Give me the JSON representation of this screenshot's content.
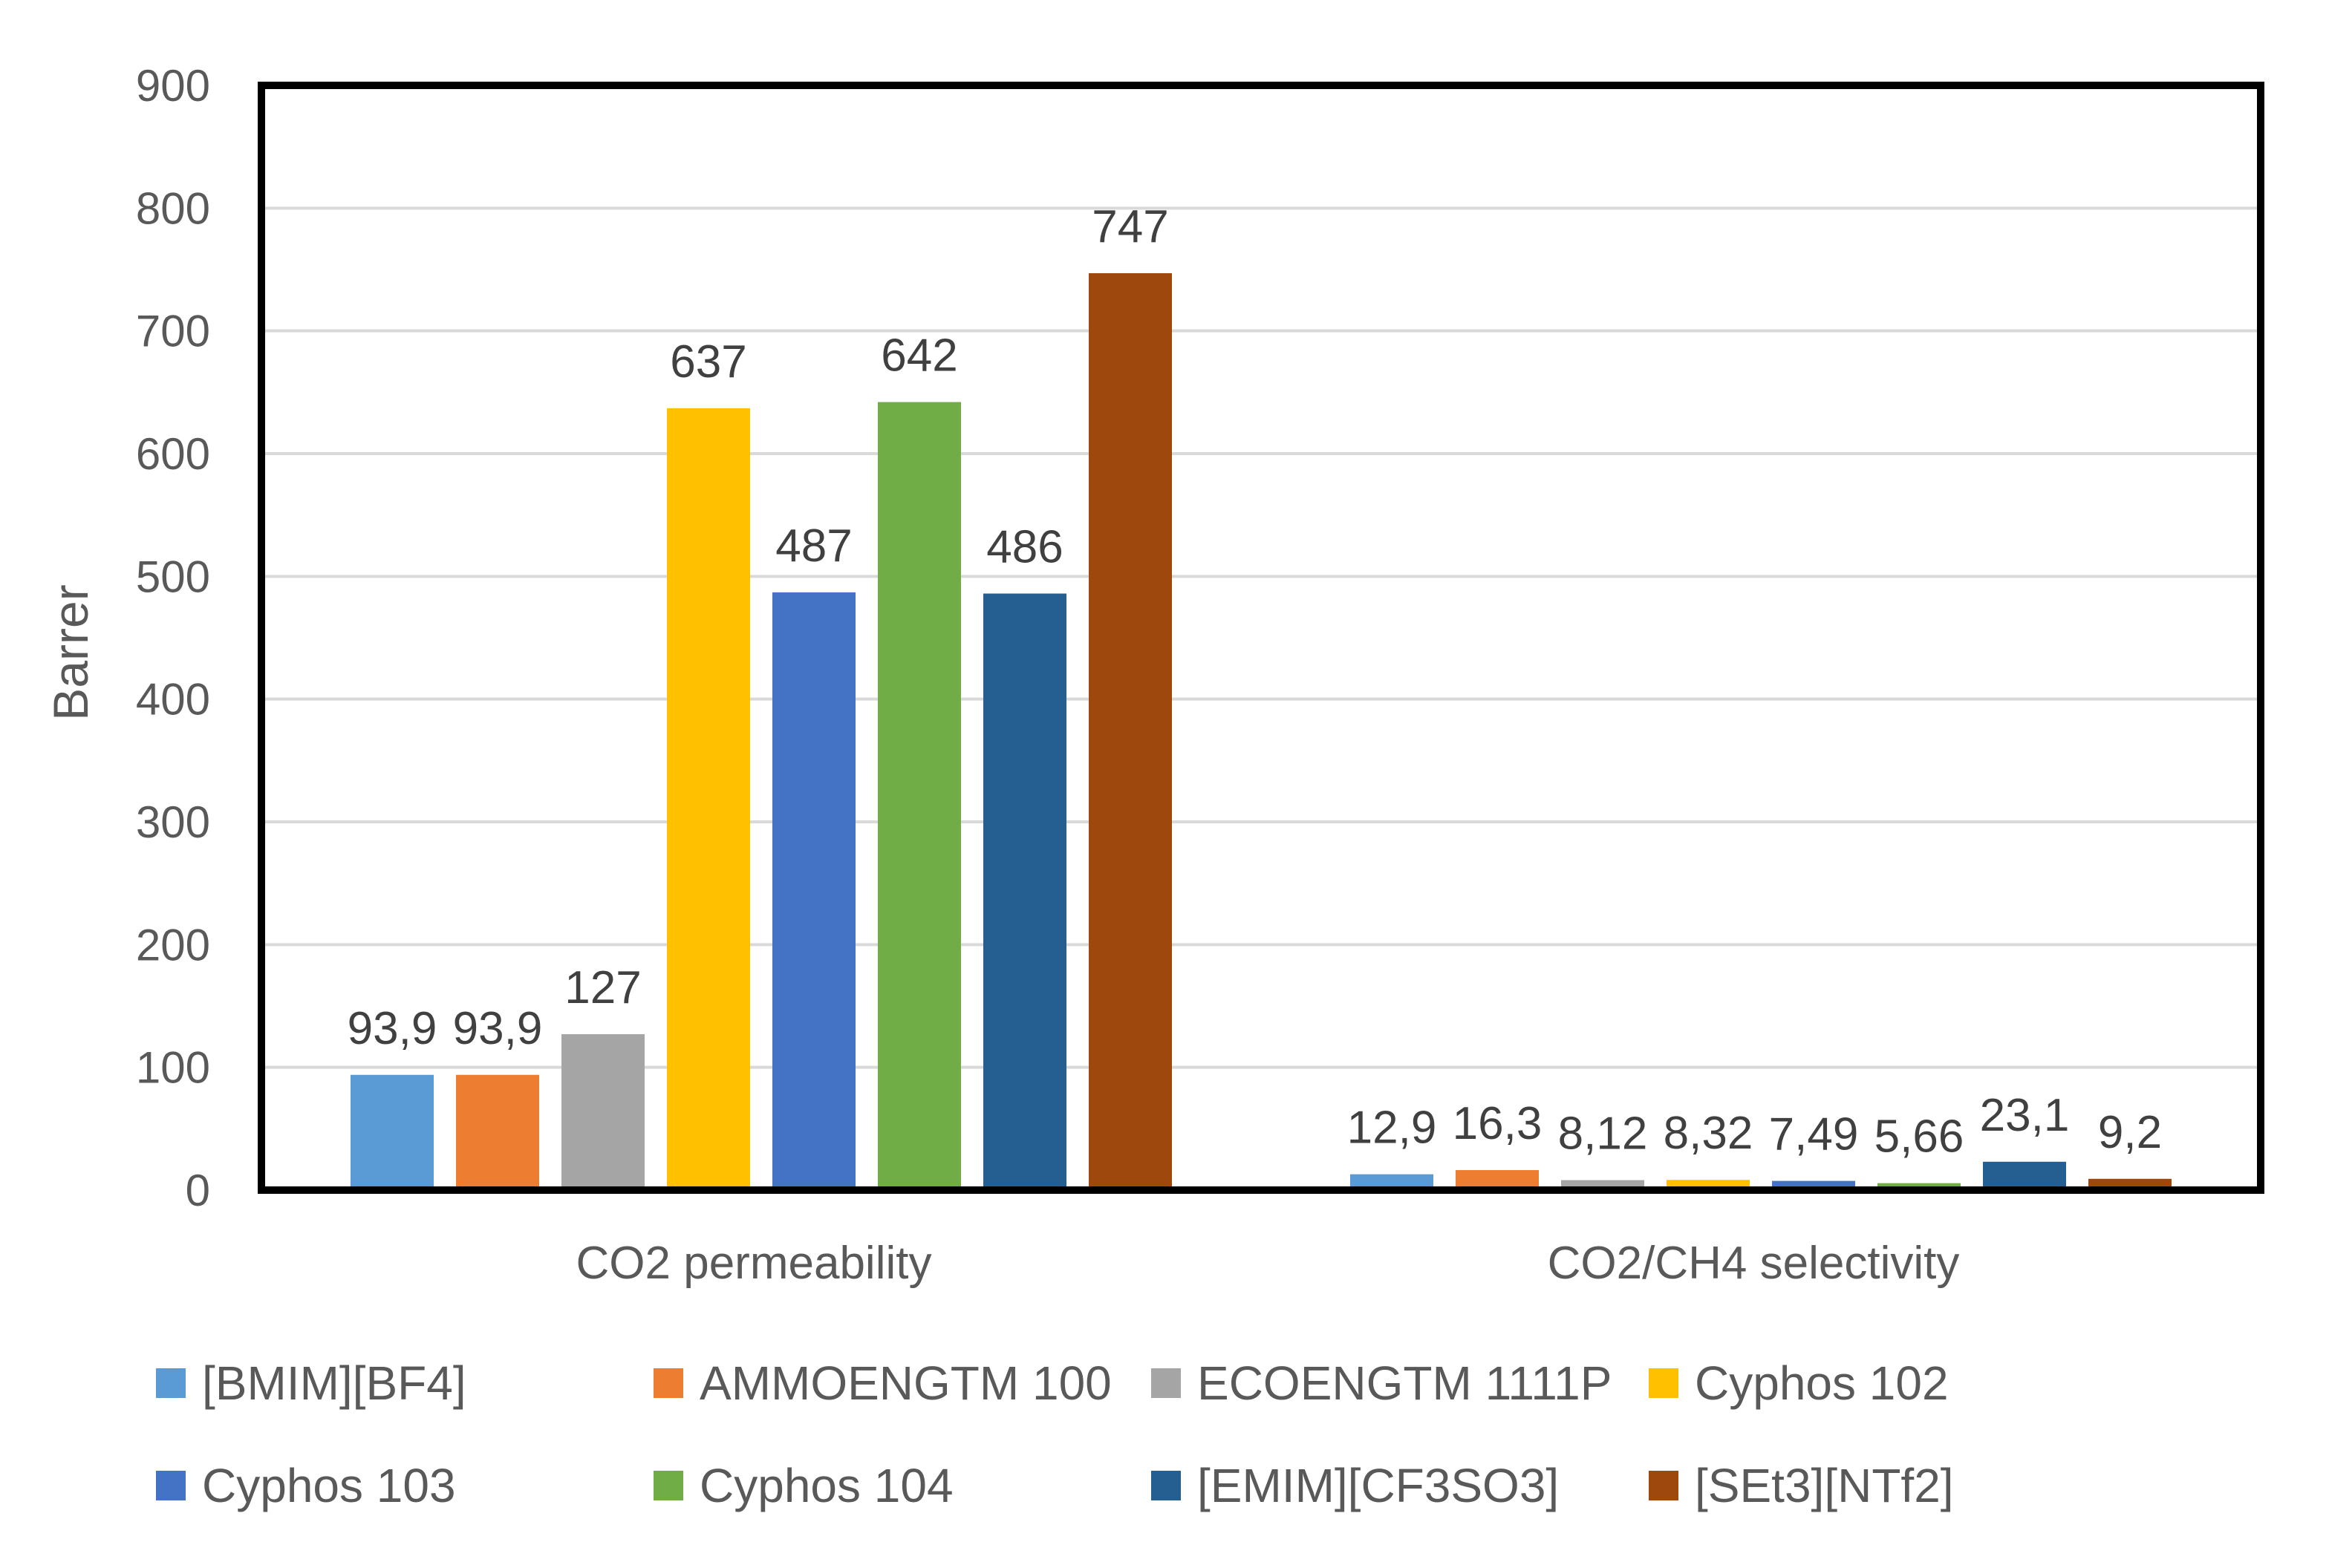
{
  "chart_data": {
    "type": "bar",
    "title": "",
    "xlabel": "",
    "ylabel": "Barrer",
    "ylim": [
      0,
      900
    ],
    "yticks": [
      0,
      100,
      200,
      300,
      400,
      500,
      600,
      700,
      800,
      900
    ],
    "grid": true,
    "legend_position": "bottom",
    "categories": [
      "CO2 permeability",
      "CO2/CH4 selectivity"
    ],
    "series": [
      {
        "name": "[BMIM][BF4]",
        "color": "#5B9BD5",
        "values": [
          93.9,
          12.9
        ],
        "labels": [
          "93,9",
          "12,9"
        ]
      },
      {
        "name": "AMMOENGTM 100",
        "color": "#ED7D31",
        "values": [
          93.9,
          16.3
        ],
        "labels": [
          "93,9",
          "16,3"
        ]
      },
      {
        "name": "ECOENGTM 1111P",
        "color": "#A5A5A5",
        "values": [
          127,
          8.12
        ],
        "labels": [
          "127",
          "8,12"
        ]
      },
      {
        "name": "Cyphos 102",
        "color": "#FFC000",
        "values": [
          637,
          8.32
        ],
        "labels": [
          "637",
          "8,32"
        ]
      },
      {
        "name": "Cyphos 103",
        "color": "#4472C4",
        "values": [
          487,
          7.49
        ],
        "labels": [
          "487",
          "7,49"
        ]
      },
      {
        "name": "Cyphos 104",
        "color": "#70AD47",
        "values": [
          642,
          5.66
        ],
        "labels": [
          "642",
          "5,66"
        ]
      },
      {
        "name": "[EMIM][CF3SO3]",
        "color": "#255E91",
        "values": [
          486,
          23.1
        ],
        "labels": [
          "486",
          "23,1"
        ]
      },
      {
        "name": "[SEt3][NTf2]",
        "color": "#9E480E",
        "values": [
          747,
          9.2
        ],
        "labels": [
          "747",
          "9,2"
        ]
      }
    ]
  }
}
